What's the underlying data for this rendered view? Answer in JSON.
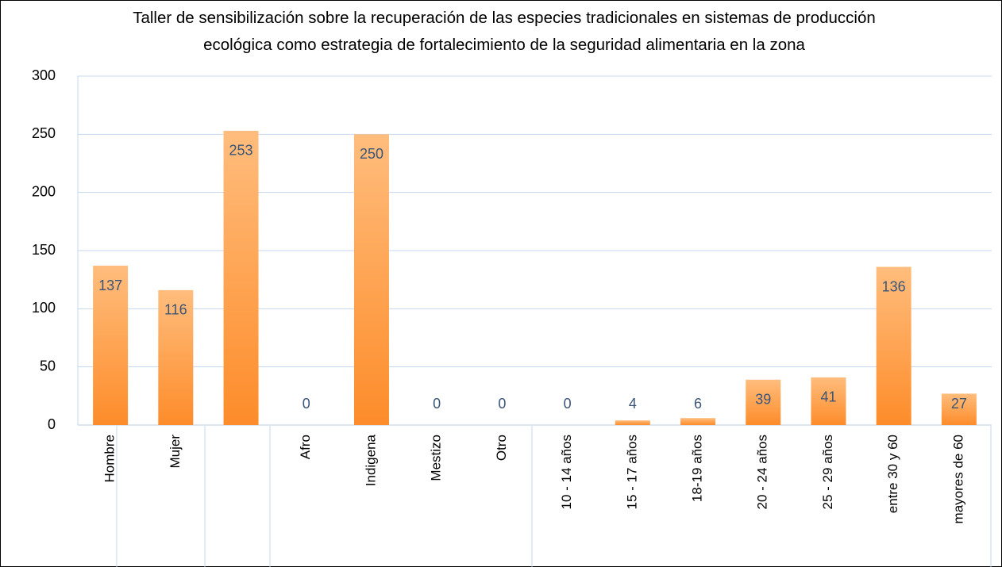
{
  "chart_data": {
    "type": "bar",
    "title": "Taller de sensibilización sobre la recuperación de las especies tradicionales en sistemas de producción ecológica como estrategia de fortalecimiento de la seguridad alimentaria en la zona",
    "categories": [
      "Hombre",
      "Mujer",
      null,
      "Afro",
      "Indigena",
      "Mestizo",
      "Otro",
      "10 - 14 años",
      "15 - 17 años",
      "18-19 años",
      "20 - 24 años",
      "25 - 29 años",
      "entre 30 y 60",
      "mayores de 60"
    ],
    "values": [
      137,
      116,
      253,
      0,
      250,
      0,
      0,
      0,
      4,
      6,
      39,
      41,
      136,
      27
    ],
    "color": "#fd8c2a",
    "ylim": [
      0,
      300
    ],
    "yticks": [
      0,
      50,
      100,
      150,
      200,
      250,
      300
    ],
    "grid": true
  }
}
